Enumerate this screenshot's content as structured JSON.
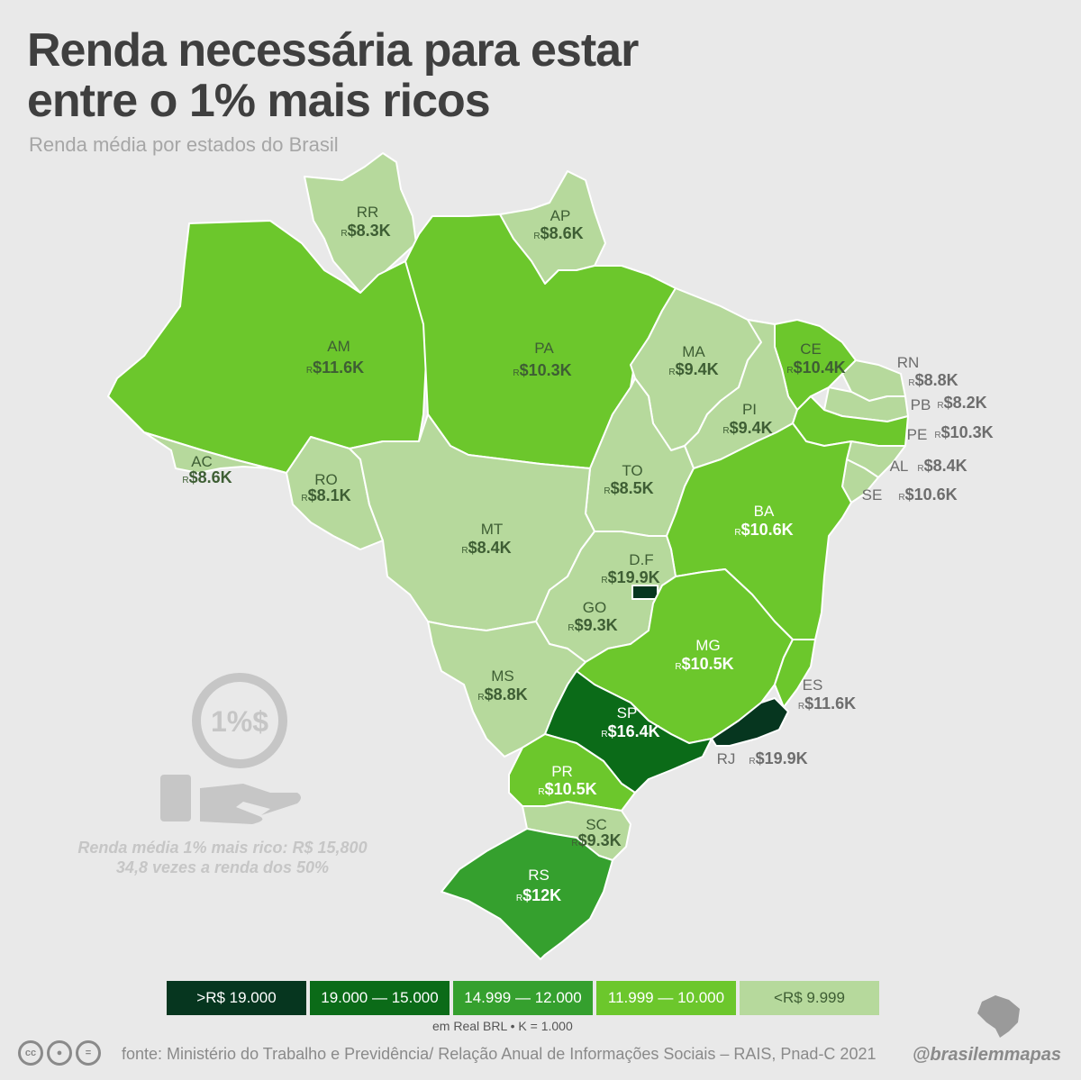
{
  "title": "Renda necessária para estar entre o 1% mais ricos",
  "subtitle": "Renda média por estados do Brasil",
  "currency_prefix": "R",
  "states": [
    {
      "abbr": "AM",
      "value": "$11.6K",
      "class": 4
    },
    {
      "abbr": "RR",
      "value": "$8.3K",
      "class": 5
    },
    {
      "abbr": "AP",
      "value": "$8.6K",
      "class": 5
    },
    {
      "abbr": "PA",
      "value": "$10.3K",
      "class": 4
    },
    {
      "abbr": "MA",
      "value": "$9.4K",
      "class": 5
    },
    {
      "abbr": "CE",
      "value": "$10.4K",
      "class": 4
    },
    {
      "abbr": "PI",
      "value": "$9.4K",
      "class": 5
    },
    {
      "abbr": "RN",
      "value": "$8.8K",
      "class": 5
    },
    {
      "abbr": "PB",
      "value": "$8.2K",
      "class": 5
    },
    {
      "abbr": "PE",
      "value": "$10.3K",
      "class": 4
    },
    {
      "abbr": "AL",
      "value": "$8.4K",
      "class": 5
    },
    {
      "abbr": "SE",
      "value": "$10.6K",
      "class": 4
    },
    {
      "abbr": "AC",
      "value": "$8.6K",
      "class": 5
    },
    {
      "abbr": "RO",
      "value": "$8.1K",
      "class": 5
    },
    {
      "abbr": "TO",
      "value": "$8.5K",
      "class": 5
    },
    {
      "abbr": "BA",
      "value": "$10.6K",
      "class": 4
    },
    {
      "abbr": "MT",
      "value": "$8.4K",
      "class": 5
    },
    {
      "abbr": "D.F",
      "value": "$19.9K",
      "class": 1
    },
    {
      "abbr": "GO",
      "value": "$9.3K",
      "class": 5
    },
    {
      "abbr": "MG",
      "value": "$10.5K",
      "class": 4
    },
    {
      "abbr": "MS",
      "value": "$8.8K",
      "class": 5
    },
    {
      "abbr": "ES",
      "value": "$11.6K",
      "class": 4
    },
    {
      "abbr": "SP",
      "value": "$16.4K",
      "class": 2
    },
    {
      "abbr": "RJ",
      "value": "$19.9K",
      "class": 1
    },
    {
      "abbr": "PR",
      "value": "$10.5K",
      "class": 4
    },
    {
      "abbr": "SC",
      "value": "$9.3K",
      "class": 5
    },
    {
      "abbr": "RS",
      "value": "$12K",
      "class": 3
    }
  ],
  "legend": [
    {
      "label": ">R$ 19.000",
      "color": "#06361f",
      "text_color": "#ffffff"
    },
    {
      "label": "19.000 — 15.000",
      "color": "#0b6b18",
      "text_color": "#ffffff"
    },
    {
      "label": "14.999 — 12.000",
      "color": "#35a02e",
      "text_color": "#ffffff"
    },
    {
      "label": "11.999 — 10.000",
      "color": "#6cc72c",
      "text_color": "#ffffff"
    },
    {
      "label": "<R$ 9.999",
      "color": "#b6d99c",
      "text_color": "#3e5e34"
    }
  ],
  "legend_note": "em Real BRL  •  K = 1.000",
  "info": {
    "icon_text": "1%$",
    "line1": "Renda média 1% mais rico: R$ 15,800",
    "line2": "34,8 vezes a renda dos 50%"
  },
  "footer": {
    "source": "fonte: Ministério do Trabalho e Previdência/ Relação Anual de Informações Sociais – RAIS, Pnad-C 2021",
    "handle": "@brasilemmapas",
    "cc_icons": [
      "cc-icon",
      "by-icon",
      "nd-icon"
    ]
  }
}
